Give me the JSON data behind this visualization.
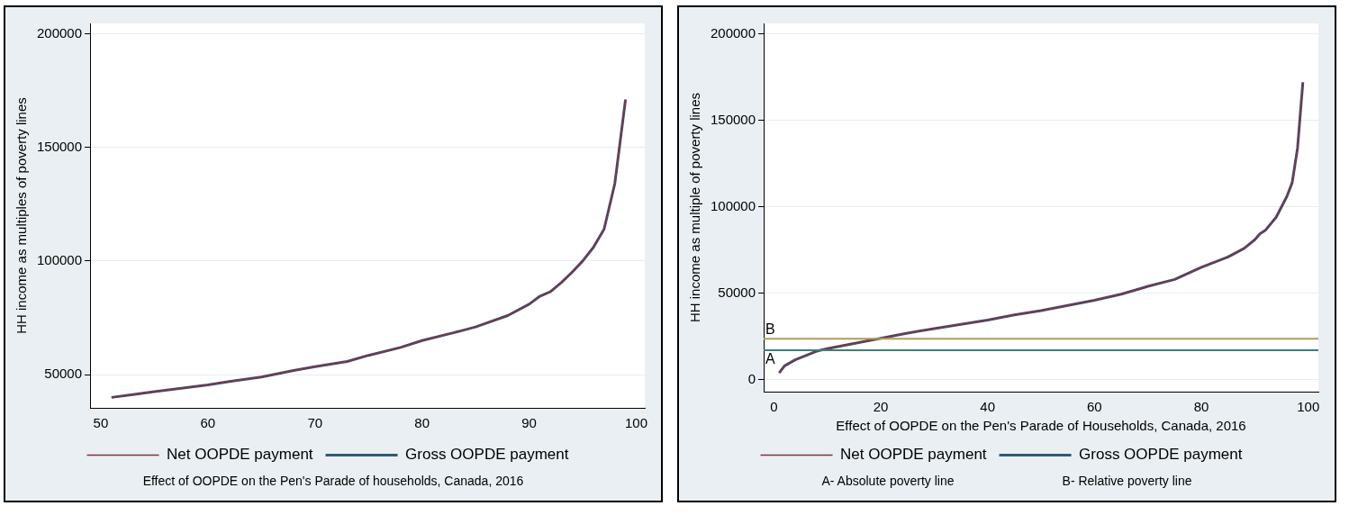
{
  "chart_data": [
    {
      "type": "line",
      "ylabel": "HH income as multiples of poverty lines",
      "x": [
        51,
        53,
        55,
        57,
        60,
        62,
        65,
        68,
        70,
        73,
        75,
        78,
        80,
        83,
        85,
        88,
        90,
        91,
        92,
        93,
        94,
        95,
        96,
        97,
        98,
        99
      ],
      "series": [
        {
          "name": "Gross OOPDE payment",
          "color": "#2e5a7a",
          "values": [
            40000,
            41200,
            42500,
            43700,
            45500,
            47000,
            49000,
            51800,
            53500,
            55800,
            58500,
            62000,
            65000,
            68500,
            71000,
            76000,
            81000,
            84500,
            86500,
            90500,
            95000,
            100000,
            106000,
            114000,
            134000,
            171000
          ]
        },
        {
          "name": "Net OOPDE payment",
          "color": "#8b2f3f",
          "values": [
            40000,
            41200,
            42500,
            43700,
            45500,
            47000,
            49000,
            51800,
            53500,
            55800,
            58500,
            62000,
            65000,
            68500,
            71000,
            76000,
            81000,
            84500,
            86500,
            90500,
            95000,
            100000,
            106000,
            114000,
            134000,
            171000
          ]
        }
      ],
      "xlim": [
        49,
        100.8
      ],
      "xticks": [
        50,
        60,
        70,
        80,
        90,
        100
      ],
      "ylim": [
        35400,
        204500
      ],
      "yticks": [
        50000,
        100000,
        150000,
        200000
      ],
      "grid": "y",
      "legend": "bottom",
      "annotations": [
        "Effect of OOPDE on the Pen's Parade of households, Canada, 2016"
      ]
    },
    {
      "type": "line",
      "xlabel": "Effect of OOPDE on the Pen's Parade of Households, Canada, 2016",
      "ylabel": "HH income as multiple of poverty lines",
      "x": [
        1,
        2,
        4,
        6,
        8,
        10,
        15,
        20,
        25,
        30,
        35,
        40,
        45,
        50,
        55,
        60,
        65,
        70,
        75,
        80,
        85,
        88,
        90,
        91,
        92,
        94,
        95,
        96,
        97,
        98,
        99
      ],
      "series": [
        {
          "name": "Gross OOPDE payment",
          "color": "#2e5a7a",
          "values": [
            4000,
            8000,
            11500,
            14000,
            16500,
            18000,
            21000,
            24000,
            27000,
            29500,
            32000,
            34500,
            37500,
            40000,
            43000,
            46000,
            49500,
            54000,
            58000,
            65000,
            71000,
            76000,
            81000,
            84500,
            86500,
            94000,
            100000,
            106000,
            114000,
            134000,
            172000
          ]
        },
        {
          "name": "Net OOPDE payment",
          "color": "#8b2f3f",
          "values": [
            4000,
            8000,
            11500,
            14000,
            16500,
            18000,
            21000,
            24000,
            27000,
            29500,
            32000,
            34500,
            37500,
            40000,
            43000,
            46000,
            49500,
            54000,
            58000,
            65000,
            71000,
            76000,
            81000,
            84500,
            86500,
            94000,
            100000,
            106000,
            114000,
            134000,
            172000
          ]
        }
      ],
      "xlim": [
        -1.9,
        101.9
      ],
      "xticks": [
        0,
        20,
        40,
        60,
        80,
        100
      ],
      "ylim": [
        -6900,
        206100
      ],
      "yticks": [
        0,
        50000,
        100000,
        150000,
        200000
      ],
      "grid": "y",
      "legend": "bottom",
      "ref_lines": [
        {
          "axis": "y",
          "value": 17000,
          "label": "A",
          "color": "#3d7f7a"
        },
        {
          "axis": "y",
          "value": 23700,
          "label": "B",
          "color": "#b59a5a"
        }
      ],
      "annotations": [
        "A- Absolute poverty line",
        "B- Relative poverty line"
      ]
    }
  ]
}
